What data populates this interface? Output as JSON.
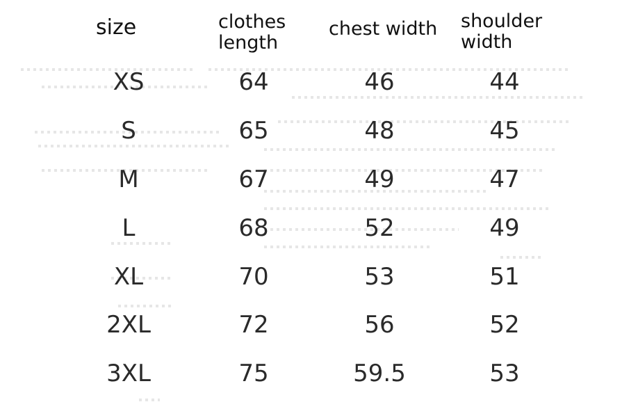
{
  "table": {
    "header": [
      "size",
      "clothes length",
      "chest width",
      "shoulder width"
    ],
    "rows": [
      [
        "XS",
        64,
        46,
        44
      ],
      [
        "S",
        65,
        48,
        45
      ],
      [
        "M",
        67,
        49,
        47
      ],
      [
        "L",
        68,
        52,
        49
      ],
      [
        "XL",
        70,
        53,
        51
      ],
      [
        "2XL",
        72,
        56,
        52
      ],
      [
        "3XL",
        75,
        59.5,
        53
      ]
    ]
  }
}
